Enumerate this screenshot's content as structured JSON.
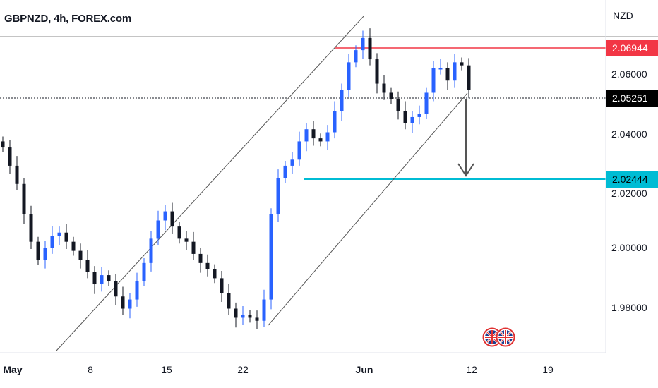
{
  "header": {
    "symbol_title": "GBPNZD, 4h, FOREX.com"
  },
  "axis": {
    "currency": "NZD"
  },
  "price_axis": {
    "ticks": [
      "2.06000",
      "2.04000",
      "2.02000",
      "2.00000",
      "1.98000"
    ],
    "tick_values": [
      2.06,
      2.04,
      2.02,
      2.0,
      1.98
    ],
    "range": [
      1.9665,
      2.0825
    ]
  },
  "time_axis": {
    "ticks": [
      "May",
      "8",
      "15",
      "22",
      "Jun",
      "12",
      "19"
    ],
    "bold": [
      true,
      false,
      false,
      false,
      true,
      false,
      false
    ]
  },
  "badges": {
    "resistance": {
      "label": "2.06944",
      "value": 2.06944,
      "color": "#f23645",
      "text_color": "#ffffff"
    },
    "current": {
      "label": "2.05251",
      "value": 2.05251,
      "color": "#000000",
      "text_color": "#ffffff"
    },
    "target": {
      "label": "2.02444",
      "value": 2.02444,
      "color": "#00bcd4",
      "text_color": "#000000"
    }
  },
  "colors": {
    "up": "#2962ff",
    "down": "#131722",
    "channel": "#555555",
    "top_line": "#777777"
  },
  "icons": [
    "uk-flag-icon",
    "uk-flag-icon"
  ],
  "chart_data": {
    "type": "candlestick",
    "symbol": "GBPNZD",
    "timeframe": "4h",
    "x_labels": [
      "May",
      "8",
      "15",
      "22",
      "Jun",
      "12",
      "19"
    ],
    "ylim": [
      1.9665,
      2.0825
    ],
    "y_ticks": [
      1.98,
      2.0,
      2.02,
      2.04,
      2.06
    ],
    "series": [
      {
        "name": "GBPNZD",
        "close": [
          2.034,
          2.028,
          2.022,
          2.012,
          2.003,
          1.997,
          2.001,
          2.005,
          2.006,
          2.003,
          2.0,
          1.997,
          1.993,
          1.989,
          1.992,
          1.99,
          1.985,
          1.981,
          1.984,
          1.99,
          1.996,
          2.004,
          2.01,
          2.013,
          2.008,
          2.004,
          2.003,
          1.999,
          1.996,
          1.994,
          1.991,
          1.986,
          1.981,
          1.978,
          1.979,
          1.978,
          1.977,
          1.984,
          2.012,
          2.024,
          2.028,
          2.03,
          2.036,
          2.04,
          2.037,
          2.036,
          2.039,
          2.046,
          2.053,
          2.062,
          2.066,
          2.07,
          2.063,
          2.055,
          2.052,
          2.05,
          2.046,
          2.042,
          2.044,
          2.045,
          2.052,
          2.06,
          2.06,
          2.056,
          2.062,
          2.061,
          2.053
        ]
      }
    ],
    "levels": [
      {
        "label": "2.06944",
        "value": 2.06944
      },
      {
        "label": "2.05251",
        "value": 2.05251
      },
      {
        "label": "2.02444",
        "value": 2.02444
      }
    ],
    "annotations": [
      "ascending-channel",
      "down-arrow"
    ],
    "grid": false
  }
}
